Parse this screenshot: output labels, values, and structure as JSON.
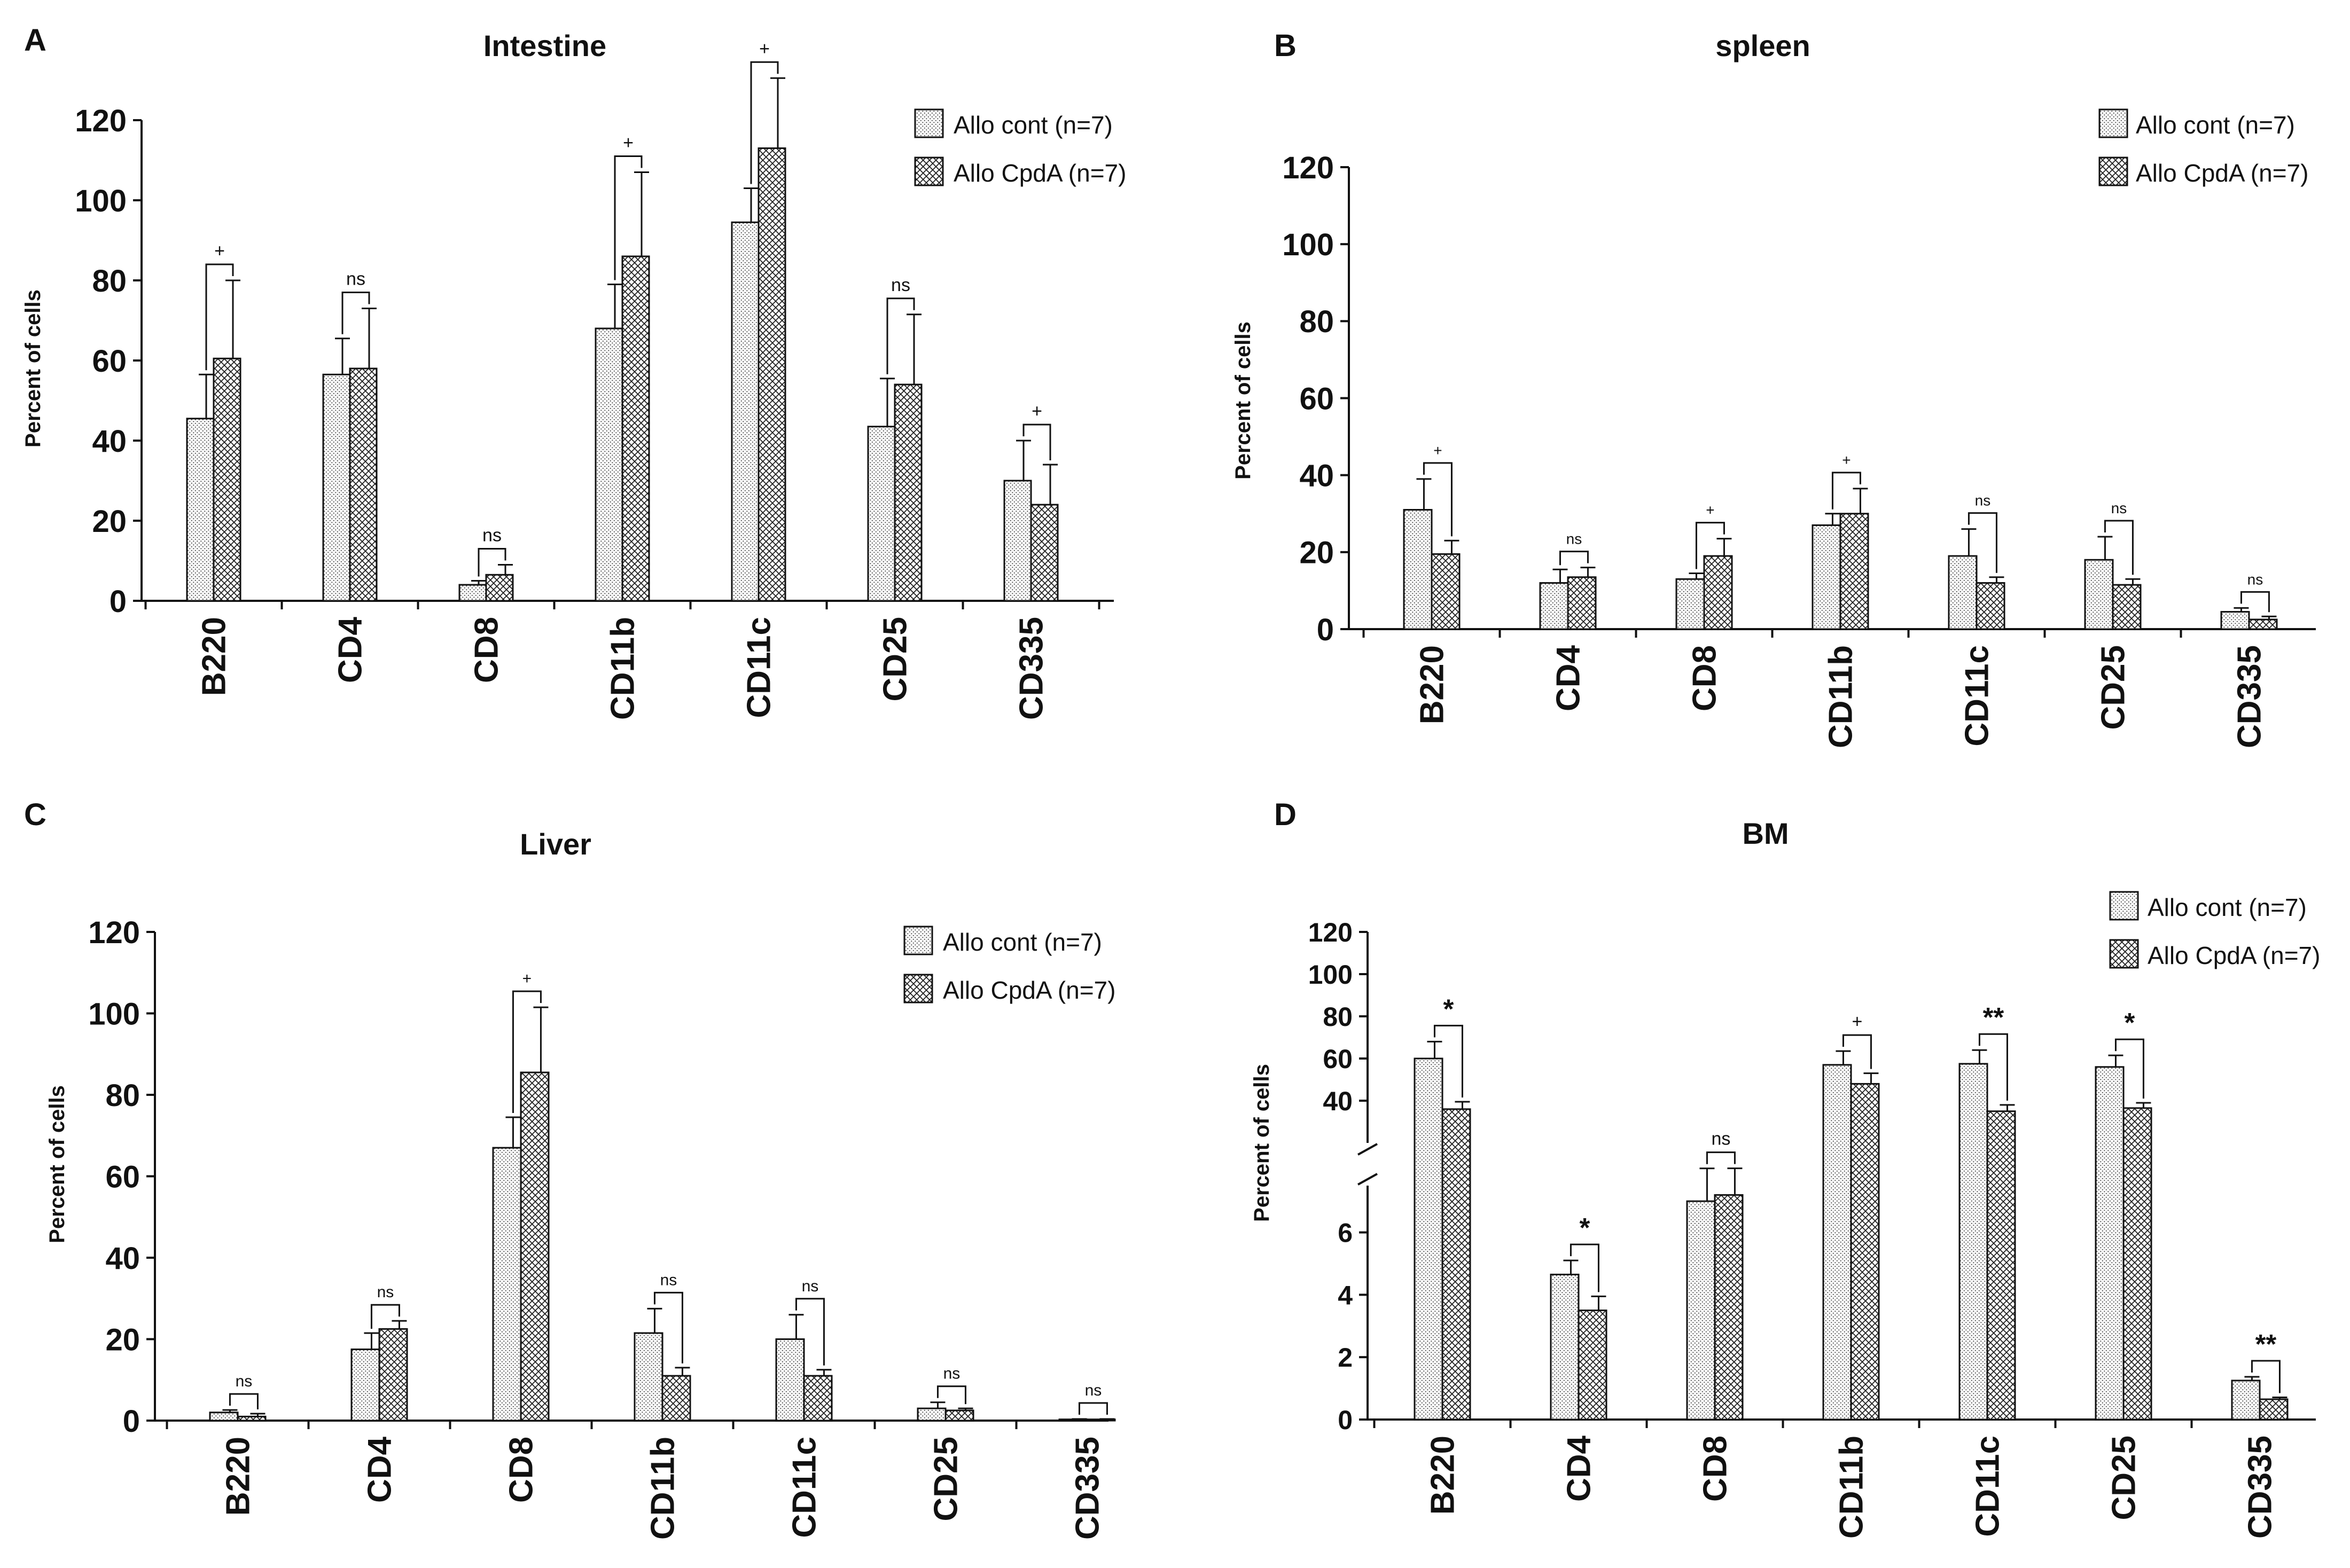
{
  "chart_data": [
    {
      "panel_label": "A",
      "title": "Intestine",
      "type": "bar",
      "ylabel": "Percent of cells",
      "ylim": [
        0,
        120
      ],
      "yticks": [
        0,
        20,
        40,
        60,
        80,
        100,
        120
      ],
      "categories": [
        "B220",
        "CD4",
        "CD8",
        "CD11b",
        "CD11c",
        "CD25",
        "CD335"
      ],
      "series": [
        {
          "name": "Allo cont (n=7)",
          "values": [
            45.5,
            56.5,
            4,
            68,
            94.5,
            43.5,
            30
          ],
          "errors": [
            11,
            9,
            1,
            11,
            8.5,
            12,
            10
          ]
        },
        {
          "name": "Allo CpdA (n=7)",
          "values": [
            60.5,
            58,
            6.5,
            86,
            113,
            54,
            24
          ],
          "errors": [
            19.5,
            15,
            2.5,
            21,
            17.5,
            17.5,
            10
          ]
        }
      ],
      "significance": [
        "+",
        "ns",
        "ns",
        "+",
        "+",
        "ns",
        "+"
      ],
      "legend_position": "top-right",
      "grid": false
    },
    {
      "panel_label": "B",
      "title": "spleen",
      "type": "bar",
      "ylabel": "Percent of cells",
      "ylim": [
        0,
        120
      ],
      "yticks": [
        0,
        20,
        40,
        60,
        80,
        100,
        120
      ],
      "categories": [
        "B220",
        "CD4",
        "CD8",
        "CD11b",
        "CD11c",
        "CD25",
        "CD335"
      ],
      "series": [
        {
          "name": "Allo cont (n=7)",
          "values": [
            31,
            12,
            13,
            27,
            19,
            18,
            4.5
          ],
          "errors": [
            8,
            3.5,
            1.5,
            3,
            7,
            6,
            1
          ]
        },
        {
          "name": "Allo CpdA (n=7)",
          "values": [
            19.5,
            13.5,
            19,
            30,
            12,
            11.5,
            2.5
          ],
          "errors": [
            3.5,
            2.5,
            4.5,
            6.5,
            1.5,
            1.5,
            0.8
          ]
        }
      ],
      "significance": [
        "+",
        "ns",
        "+",
        "+",
        "ns",
        "ns",
        "ns"
      ],
      "legend_position": "top-right",
      "grid": false
    },
    {
      "panel_label": "C",
      "title": "Liver",
      "type": "bar",
      "ylabel": "Percent of cells",
      "ylim": [
        0,
        120
      ],
      "yticks": [
        0,
        20,
        40,
        60,
        80,
        100,
        120
      ],
      "categories": [
        "B220",
        "CD4",
        "CD8",
        "CD11b",
        "CD11c",
        "CD25",
        "CD335"
      ],
      "series": [
        {
          "name": "Allo cont (n=7)",
          "values": [
            2,
            17.5,
            67,
            21.5,
            20,
            3,
            0.3
          ],
          "errors": [
            0.6,
            4,
            7.5,
            6,
            6,
            1.5,
            0.1
          ]
        },
        {
          "name": "Allo CpdA (n=7)",
          "values": [
            1,
            22.5,
            85.5,
            11,
            11,
            2.5,
            0.3
          ],
          "errors": [
            0.7,
            2,
            16,
            2,
            1.5,
            0.5,
            0.1
          ]
        }
      ],
      "significance": [
        "ns",
        "ns",
        "+",
        "ns",
        "ns",
        "ns",
        "ns"
      ],
      "legend_position": "top-right",
      "grid": false
    },
    {
      "panel_label": "D",
      "title": "BM",
      "type": "bar",
      "ylabel": "Percent of cells",
      "axis_break": true,
      "ylim_lower": [
        0,
        7.5
      ],
      "ylim_upper": [
        20,
        120
      ],
      "yticks_lower": [
        0,
        2,
        4,
        6
      ],
      "yticks_upper": [
        40,
        60,
        80,
        100,
        120
      ],
      "categories": [
        "B220",
        "CD4",
        "CD8",
        "CD11b",
        "CD11c",
        "CD25",
        "CD335"
      ],
      "series": [
        {
          "name": "Allo cont (n=7)",
          "values": [
            60,
            4.65,
            7,
            57,
            57.5,
            56,
            1.25
          ],
          "errors": [
            8,
            0.45,
            0.9,
            6.5,
            6.5,
            5.5,
            0.12
          ]
        },
        {
          "name": "Allo CpdA (n=7)",
          "values": [
            36,
            3.5,
            7.2,
            48,
            35,
            36.5,
            0.65
          ],
          "errors": [
            3.5,
            0.45,
            0.75,
            5,
            3,
            2.5,
            0.06
          ]
        }
      ],
      "significance": [
        "*",
        "*",
        "ns",
        "+",
        "**",
        "*",
        "**"
      ],
      "legend_position": "top-right",
      "grid": false
    }
  ]
}
